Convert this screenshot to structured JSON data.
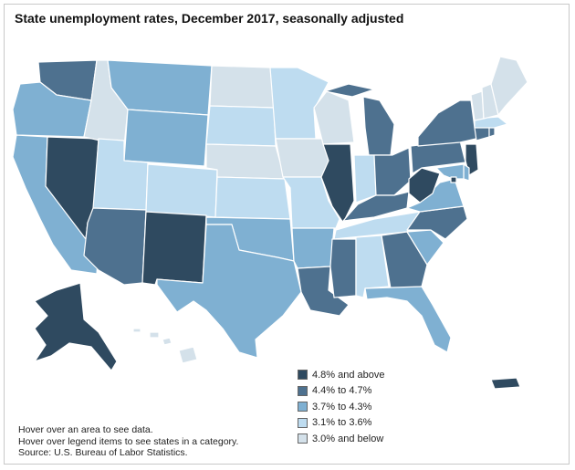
{
  "map": {
    "title": "State unemployment rates, December 2017, seasonally adjusted",
    "legend": [
      {
        "label": "4.8% and above",
        "color": "#2f4a60"
      },
      {
        "label": "4.4% to 4.7%",
        "color": "#4e718f"
      },
      {
        "label": "3.7% to 4.3%",
        "color": "#7fb0d2"
      },
      {
        "label": "3.1% to 3.6%",
        "color": "#bedcf0"
      },
      {
        "label": "3.0% and below",
        "color": "#d4e1ea"
      }
    ],
    "notes": [
      "Hover over an area to see data.",
      "Hover over legend items to see states in a category.",
      "Source: U.S. Bureau of Labor Statistics."
    ],
    "state_category": {
      "WA": 1,
      "OR": 2,
      "CA": 2,
      "NV": 0,
      "ID": 4,
      "MT": 2,
      "WY": 2,
      "UT": 3,
      "AZ": 1,
      "CO": 3,
      "NM": 0,
      "ND": 4,
      "SD": 3,
      "NE": 4,
      "KS": 3,
      "OK": 2,
      "TX": 2,
      "MN": 3,
      "IA": 4,
      "MO": 3,
      "AR": 2,
      "LA": 1,
      "WI": 4,
      "IL": 0,
      "MI": 1,
      "IN": 3,
      "OH": 1,
      "KY": 1,
      "TN": 3,
      "MS": 1,
      "AL": 3,
      "GA": 1,
      "FL": 2,
      "SC": 2,
      "NC": 1,
      "VA": 2,
      "WV": 0,
      "PA": 1,
      "NY": 1,
      "NJ": 0,
      "DE": 2,
      "MD": 2,
      "DC": 0,
      "CT": 1,
      "RI": 1,
      "MA": 3,
      "VT": 4,
      "NH": 4,
      "ME": 4,
      "AK": 0,
      "HI": 4,
      "PR": 0
    }
  }
}
